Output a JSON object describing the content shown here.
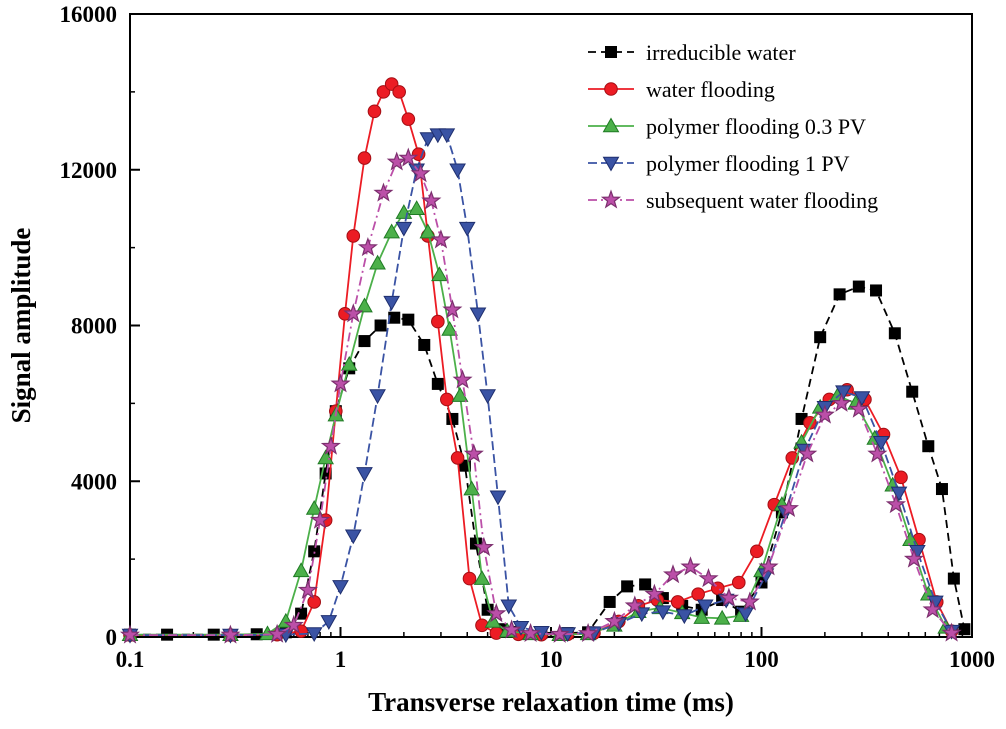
{
  "figure": {
    "background": "#ffffff"
  },
  "chart_data": {
    "type": "line",
    "title": "",
    "xlabel": "Transverse relaxation time (ms)",
    "ylabel": "Signal amplitude",
    "x_scale": "log",
    "xlim": [
      0.1,
      1000
    ],
    "ylim": [
      0,
      16000
    ],
    "x_ticks": [
      0.1,
      1,
      10,
      100,
      1000
    ],
    "x_tick_labels": [
      "0.1",
      "1",
      "10",
      "100",
      "1000"
    ],
    "y_ticks": [
      0,
      4000,
      8000,
      12000,
      16000
    ],
    "y_tick_labels": [
      "0",
      "4000",
      "8000",
      "12000",
      "16000"
    ],
    "grid": false,
    "legend_position": "inside-top-right",
    "series": [
      {
        "name": "irreducible water",
        "marker": "square",
        "color": "#000000",
        "marker_fill": "#000000",
        "marker_stroke": "#000000",
        "line_dash": "8 5",
        "points": [
          [
            0.1,
            60
          ],
          [
            0.15,
            60
          ],
          [
            0.25,
            60
          ],
          [
            0.4,
            70
          ],
          [
            0.55,
            120
          ],
          [
            0.65,
            600
          ],
          [
            0.75,
            2200
          ],
          [
            0.85,
            4200
          ],
          [
            0.95,
            5800
          ],
          [
            1.1,
            6900
          ],
          [
            1.3,
            7600
          ],
          [
            1.55,
            8000
          ],
          [
            1.8,
            8200
          ],
          [
            2.1,
            8150
          ],
          [
            2.5,
            7500
          ],
          [
            2.9,
            6500
          ],
          [
            3.4,
            5600
          ],
          [
            3.9,
            4400
          ],
          [
            4.4,
            2400
          ],
          [
            5.0,
            700
          ],
          [
            5.8,
            200
          ],
          [
            7,
            130
          ],
          [
            9,
            110
          ],
          [
            12,
            100
          ],
          [
            15,
            120
          ],
          [
            19,
            900
          ],
          [
            23,
            1300
          ],
          [
            28,
            1350
          ],
          [
            34,
            1000
          ],
          [
            42,
            800
          ],
          [
            52,
            700
          ],
          [
            65,
            950
          ],
          [
            80,
            650
          ],
          [
            100,
            1400
          ],
          [
            125,
            3200
          ],
          [
            155,
            5600
          ],
          [
            190,
            7700
          ],
          [
            235,
            8800
          ],
          [
            290,
            9000
          ],
          [
            350,
            8900
          ],
          [
            430,
            7800
          ],
          [
            520,
            6300
          ],
          [
            620,
            4900
          ],
          [
            720,
            3800
          ],
          [
            820,
            1500
          ],
          [
            920,
            200
          ]
        ]
      },
      {
        "name": "water flooding",
        "marker": "circle",
        "color": "#ec1c24",
        "marker_fill": "#ec1c24",
        "marker_stroke": "#a30e14",
        "line_dash": "",
        "points": [
          [
            0.1,
            50
          ],
          [
            0.3,
            50
          ],
          [
            0.5,
            60
          ],
          [
            0.65,
            150
          ],
          [
            0.75,
            900
          ],
          [
            0.85,
            3000
          ],
          [
            0.95,
            5800
          ],
          [
            1.05,
            8300
          ],
          [
            1.15,
            10300
          ],
          [
            1.3,
            12300
          ],
          [
            1.45,
            13500
          ],
          [
            1.6,
            14000
          ],
          [
            1.75,
            14200
          ],
          [
            1.9,
            14000
          ],
          [
            2.1,
            13300
          ],
          [
            2.35,
            12400
          ],
          [
            2.6,
            10300
          ],
          [
            2.9,
            8100
          ],
          [
            3.2,
            6100
          ],
          [
            3.6,
            4600
          ],
          [
            4.1,
            1500
          ],
          [
            4.7,
            300
          ],
          [
            5.5,
            100
          ],
          [
            7,
            70
          ],
          [
            9,
            60
          ],
          [
            12,
            70
          ],
          [
            16,
            100
          ],
          [
            21,
            400
          ],
          [
            26,
            800
          ],
          [
            32,
            950
          ],
          [
            40,
            900
          ],
          [
            50,
            1100
          ],
          [
            62,
            1250
          ],
          [
            78,
            1400
          ],
          [
            95,
            2200
          ],
          [
            115,
            3400
          ],
          [
            140,
            4600
          ],
          [
            170,
            5500
          ],
          [
            210,
            6100
          ],
          [
            255,
            6350
          ],
          [
            310,
            6100
          ],
          [
            380,
            5200
          ],
          [
            460,
            4100
          ],
          [
            560,
            2500
          ],
          [
            680,
            900
          ],
          [
            800,
            150
          ]
        ]
      },
      {
        "name": "polymer flooding 0.3 PV",
        "marker": "triangle-up",
        "color": "#4cb04a",
        "marker_fill": "#4cb04a",
        "marker_stroke": "#1f7a24",
        "line_dash": "",
        "points": [
          [
            0.1,
            60
          ],
          [
            0.3,
            60
          ],
          [
            0.45,
            80
          ],
          [
            0.55,
            400
          ],
          [
            0.65,
            1700
          ],
          [
            0.75,
            3300
          ],
          [
            0.85,
            4600
          ],
          [
            0.95,
            5700
          ],
          [
            1.1,
            7000
          ],
          [
            1.3,
            8500
          ],
          [
            1.5,
            9600
          ],
          [
            1.75,
            10400
          ],
          [
            2.0,
            10900
          ],
          [
            2.3,
            11000
          ],
          [
            2.6,
            10400
          ],
          [
            2.95,
            9300
          ],
          [
            3.3,
            7900
          ],
          [
            3.7,
            6200
          ],
          [
            4.2,
            3800
          ],
          [
            4.7,
            1500
          ],
          [
            5.3,
            400
          ],
          [
            6.2,
            150
          ],
          [
            8,
            80
          ],
          [
            11,
            60
          ],
          [
            15,
            80
          ],
          [
            20,
            300
          ],
          [
            26,
            650
          ],
          [
            33,
            750
          ],
          [
            42,
            620
          ],
          [
            52,
            500
          ],
          [
            65,
            480
          ],
          [
            80,
            550
          ],
          [
            100,
            1700
          ],
          [
            125,
            3400
          ],
          [
            155,
            5000
          ],
          [
            190,
            5900
          ],
          [
            230,
            6200
          ],
          [
            280,
            6000
          ],
          [
            345,
            5100
          ],
          [
            420,
            3900
          ],
          [
            510,
            2500
          ],
          [
            620,
            1100
          ],
          [
            750,
            250
          ]
        ]
      },
      {
        "name": "polymer flooding 1 PV",
        "marker": "triangle-down",
        "color": "#3a53a4",
        "marker_fill": "#3a53a4",
        "marker_stroke": "#1f2f6e",
        "line_dash": "9 4",
        "points": [
          [
            0.1,
            50
          ],
          [
            0.3,
            50
          ],
          [
            0.55,
            60
          ],
          [
            0.75,
            90
          ],
          [
            0.88,
            400
          ],
          [
            1.0,
            1300
          ],
          [
            1.15,
            2600
          ],
          [
            1.3,
            4200
          ],
          [
            1.5,
            6200
          ],
          [
            1.75,
            8600
          ],
          [
            2.0,
            10500
          ],
          [
            2.3,
            12000
          ],
          [
            2.6,
            12800
          ],
          [
            2.9,
            12900
          ],
          [
            3.2,
            12900
          ],
          [
            3.6,
            12000
          ],
          [
            4.0,
            10500
          ],
          [
            4.5,
            8300
          ],
          [
            5.0,
            6200
          ],
          [
            5.6,
            3600
          ],
          [
            6.3,
            800
          ],
          [
            7.2,
            250
          ],
          [
            9,
            120
          ],
          [
            12,
            90
          ],
          [
            16,
            110
          ],
          [
            21,
            350
          ],
          [
            27,
            600
          ],
          [
            34,
            650
          ],
          [
            43,
            550
          ],
          [
            54,
            800
          ],
          [
            68,
            950
          ],
          [
            84,
            600
          ],
          [
            105,
            1600
          ],
          [
            130,
            3200
          ],
          [
            160,
            4800
          ],
          [
            200,
            5900
          ],
          [
            245,
            6300
          ],
          [
            300,
            6150
          ],
          [
            370,
            5000
          ],
          [
            450,
            3700
          ],
          [
            550,
            2200
          ],
          [
            670,
            900
          ],
          [
            800,
            150
          ]
        ]
      },
      {
        "name": "subsequent water flooding",
        "marker": "star",
        "color": "#bb4fa8",
        "marker_fill": "#bb4fa8",
        "marker_stroke": "#7c2f6e",
        "line_dash": "9 4 2 4",
        "points": [
          [
            0.1,
            50
          ],
          [
            0.3,
            50
          ],
          [
            0.5,
            70
          ],
          [
            0.6,
            300
          ],
          [
            0.7,
            1200
          ],
          [
            0.8,
            3000
          ],
          [
            0.9,
            4900
          ],
          [
            1.0,
            6500
          ],
          [
            1.15,
            8300
          ],
          [
            1.35,
            10000
          ],
          [
            1.6,
            11400
          ],
          [
            1.85,
            12200
          ],
          [
            2.1,
            12300
          ],
          [
            2.4,
            11900
          ],
          [
            2.7,
            11200
          ],
          [
            3.0,
            10200
          ],
          [
            3.4,
            8400
          ],
          [
            3.8,
            6600
          ],
          [
            4.3,
            4700
          ],
          [
            4.8,
            2300
          ],
          [
            5.5,
            600
          ],
          [
            6.5,
            180
          ],
          [
            8,
            90
          ],
          [
            11,
            70
          ],
          [
            15,
            90
          ],
          [
            20,
            400
          ],
          [
            25,
            800
          ],
          [
            31,
            1100
          ],
          [
            38,
            1600
          ],
          [
            46,
            1800
          ],
          [
            56,
            1500
          ],
          [
            70,
            1000
          ],
          [
            88,
            900
          ],
          [
            108,
            1800
          ],
          [
            135,
            3300
          ],
          [
            165,
            4700
          ],
          [
            200,
            5700
          ],
          [
            240,
            6000
          ],
          [
            290,
            5850
          ],
          [
            355,
            4700
          ],
          [
            435,
            3400
          ],
          [
            530,
            2000
          ],
          [
            650,
            700
          ],
          [
            800,
            100
          ]
        ]
      }
    ]
  }
}
